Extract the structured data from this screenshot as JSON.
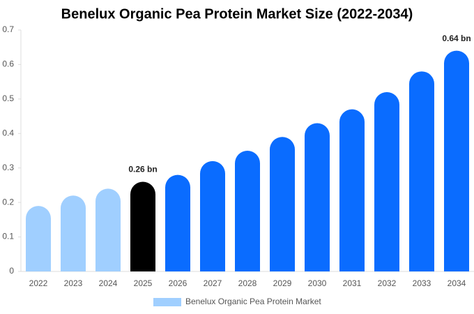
{
  "chart_data": {
    "type": "bar",
    "title": "Benelux Organic Pea Protein Market Size (2022-2034)",
    "categories": [
      "2022",
      "2023",
      "2024",
      "2025",
      "2026",
      "2027",
      "2028",
      "2029",
      "2030",
      "2031",
      "2032",
      "2033",
      "2034"
    ],
    "series": [
      {
        "name": "Benelux Organic Pea Protein Market",
        "color": "#a0cfff",
        "values": [
          0.19,
          0.22,
          0.24,
          0.26,
          0.28,
          0.32,
          0.35,
          0.39,
          0.43,
          0.47,
          0.52,
          0.58,
          0.64
        ],
        "value_labels": [
          null,
          null,
          null,
          "0.26 bn",
          null,
          null,
          null,
          null,
          null,
          null,
          null,
          null,
          "0.64 bn"
        ],
        "colors": [
          "#a0cfff",
          "#a0cfff",
          "#a0cfff",
          "#000000",
          "#0a6cff",
          "#0a6cff",
          "#0a6cff",
          "#0a6cff",
          "#0a6cff",
          "#0a6cff",
          "#0a6cff",
          "#0a6cff",
          "#0a6cff"
        ]
      }
    ],
    "ylim": [
      0,
      0.7
    ],
    "yticks": [
      0,
      0.1,
      0.2,
      0.3,
      0.4,
      0.5,
      0.6,
      0.7
    ],
    "grid": false
  }
}
